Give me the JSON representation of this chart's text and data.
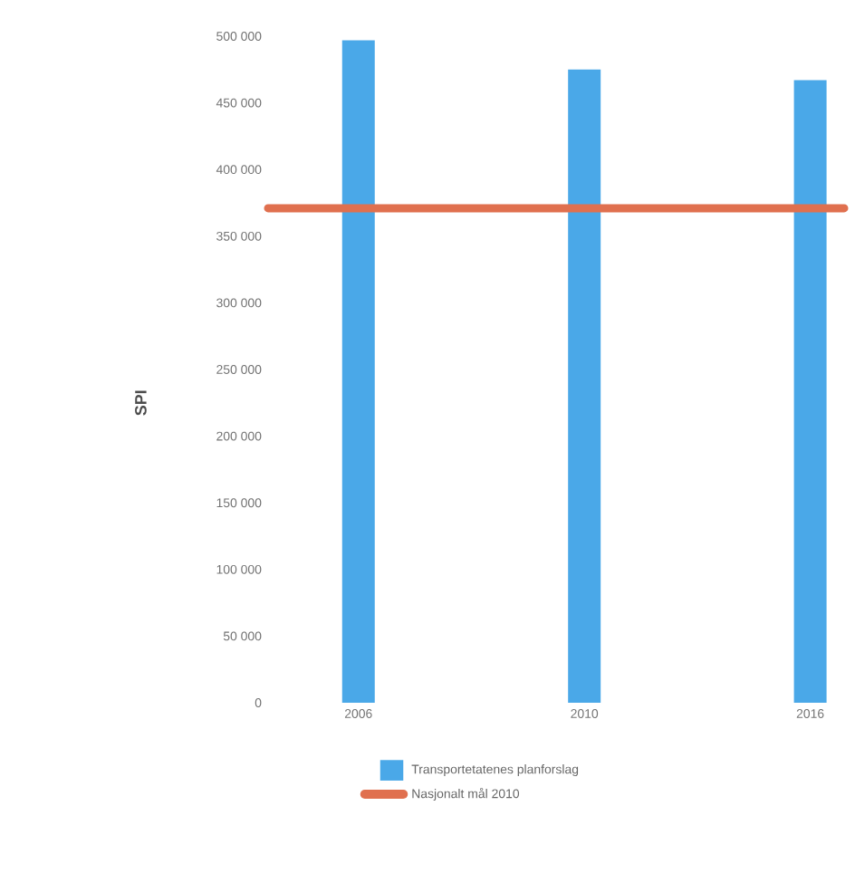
{
  "chart_data": {
    "type": "bar",
    "ylabel": "SPI",
    "categories": [
      "2006",
      "2010",
      "2016"
    ],
    "series": [
      {
        "name": "Transportetatenes planforslag",
        "color": "#4aa8e8",
        "values": [
          497000,
          475000,
          467000
        ]
      }
    ],
    "ref_lines": [
      {
        "axis": "y",
        "value": 371000,
        "label": "Nasjonalt mål 2010",
        "color": "#e0704f"
      }
    ],
    "ylim": [
      0,
      500000
    ],
    "yticks": [
      {
        "value": 0,
        "label": "0"
      },
      {
        "value": 50000,
        "label": "50 000"
      },
      {
        "value": 100000,
        "label": "100 000"
      },
      {
        "value": 150000,
        "label": "150 000"
      },
      {
        "value": 200000,
        "label": "200 000"
      },
      {
        "value": 250000,
        "label": "250 000"
      },
      {
        "value": 300000,
        "label": "300 000"
      },
      {
        "value": 350000,
        "label": "350 000"
      },
      {
        "value": 400000,
        "label": "400 000"
      },
      {
        "value": 450000,
        "label": "450 000"
      },
      {
        "value": 500000,
        "label": "500 000"
      }
    ],
    "grid": false,
    "legend": "bottom"
  }
}
